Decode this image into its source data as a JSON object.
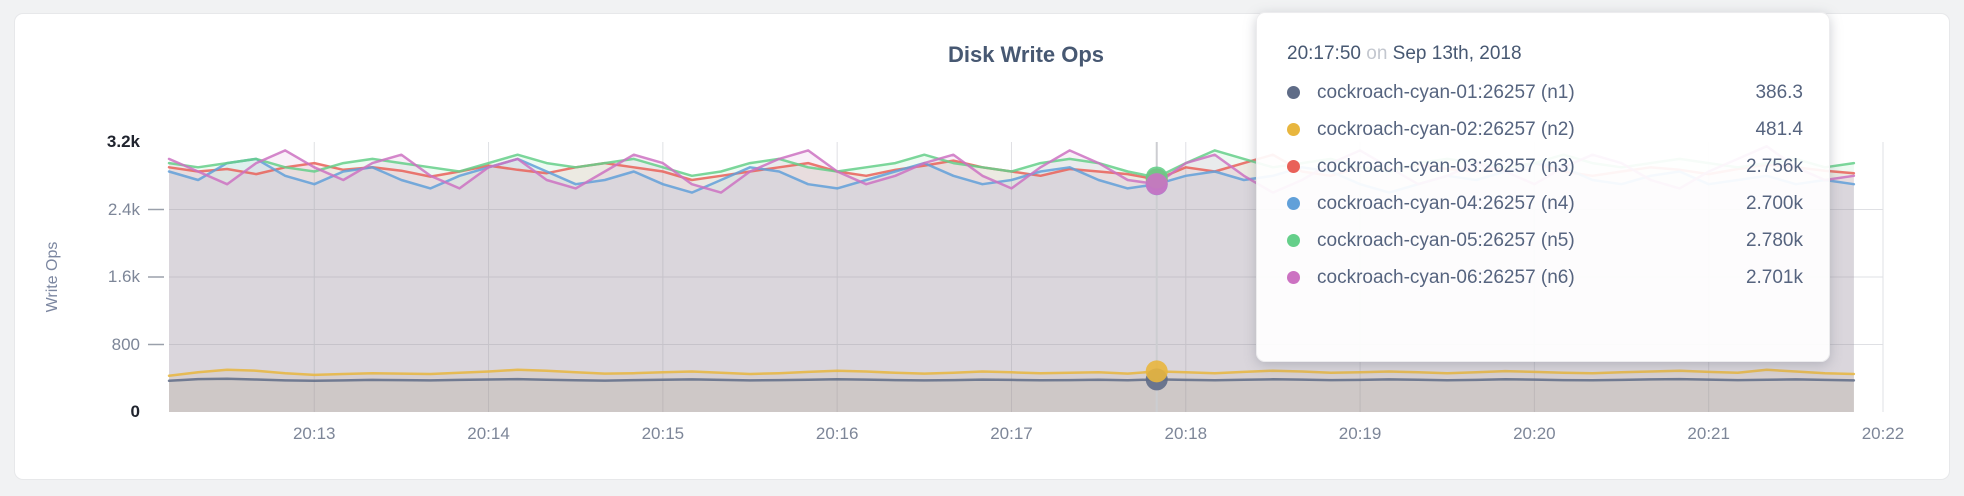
{
  "chart_data": {
    "type": "line",
    "title": "Disk Write Ops",
    "xlabel": "",
    "ylabel": "Write Ops",
    "ylim": [
      0,
      3200
    ],
    "grid": true,
    "legend_position": "tooltip",
    "x_start": "20:12:10",
    "x_domain_end": "20:22:00",
    "interval_seconds": 10,
    "x_ticks": [
      "20:13",
      "20:14",
      "20:15",
      "20:16",
      "20:17",
      "20:18",
      "20:19",
      "20:20",
      "20:21",
      "20:22"
    ],
    "y_ticks": [
      {
        "label": "0",
        "value": 0,
        "emphasis": true
      },
      {
        "label": "800",
        "value": 800,
        "emphasis": false
      },
      {
        "label": "1.6k",
        "value": 1600,
        "emphasis": false
      },
      {
        "label": "2.4k",
        "value": 2400,
        "emphasis": false
      },
      {
        "label": "3.2k",
        "value": 3200,
        "emphasis": true
      }
    ],
    "highlight": {
      "time": "20:17:50",
      "index": 34
    },
    "series": [
      {
        "name": "cockroach-cyan-01:26257 (n1)",
        "color": "#5f6c87",
        "values": [
          370,
          390,
          395,
          385,
          375,
          370,
          375,
          380,
          378,
          375,
          380,
          385,
          390,
          382,
          376,
          372,
          378,
          382,
          386,
          380,
          375,
          378,
          382,
          388,
          384,
          378,
          374,
          378,
          384,
          380,
          376,
          378,
          382,
          376,
          386.3,
          380,
          376,
          382,
          388,
          384,
          378,
          380,
          386,
          382,
          376,
          380,
          388,
          384,
          378,
          376,
          380,
          386,
          390,
          384,
          378,
          382,
          386,
          380,
          374
        ]
      },
      {
        "name": "cockroach-cyan-02:26257 (n2)",
        "color": "#e8b63e",
        "values": [
          430,
          470,
          500,
          490,
          460,
          440,
          450,
          460,
          455,
          450,
          465,
          480,
          500,
          490,
          470,
          455,
          460,
          470,
          480,
          465,
          450,
          460,
          475,
          490,
          480,
          465,
          455,
          465,
          480,
          470,
          460,
          465,
          470,
          455,
          481.4,
          470,
          460,
          475,
          490,
          480,
          465,
          470,
          480,
          470,
          460,
          470,
          485,
          475,
          465,
          460,
          470,
          480,
          490,
          475,
          465,
          500,
          480,
          460,
          450
        ]
      },
      {
        "name": "cockroach-cyan-03:26257 (n3)",
        "color": "#e96159",
        "values": [
          2900,
          2850,
          2880,
          2820,
          2900,
          2950,
          2870,
          2900,
          2860,
          2790,
          2850,
          2920,
          2870,
          2830,
          2900,
          2950,
          2900,
          2850,
          2750,
          2800,
          2850,
          2900,
          2950,
          2850,
          2800,
          2870,
          2920,
          2980,
          2900,
          2850,
          2800,
          2880,
          2850,
          2820,
          2756,
          2900,
          2850,
          2950,
          3050,
          2850,
          2800,
          2900,
          2870,
          2930,
          2880,
          2850,
          2900,
          2950,
          2850,
          2800,
          2850,
          2900,
          2870,
          2820,
          2880,
          2930,
          2900,
          2860,
          2830
        ]
      },
      {
        "name": "cockroach-cyan-04:26257 (n4)",
        "color": "#61a0d9",
        "values": [
          2850,
          2750,
          2950,
          3000,
          2800,
          2700,
          2850,
          2900,
          2750,
          2650,
          2800,
          2900,
          3000,
          2850,
          2700,
          2750,
          2850,
          2700,
          2600,
          2750,
          2900,
          2850,
          2700,
          2650,
          2750,
          2850,
          2950,
          2800,
          2700,
          2750,
          2850,
          2900,
          2750,
          2650,
          2700,
          2800,
          2850,
          2750,
          2800,
          2900,
          2850,
          2700,
          2600,
          2700,
          2800,
          2750,
          2850,
          2950,
          2900,
          2750,
          2700,
          2800,
          2850,
          2700,
          2750,
          2800,
          2700,
          2750,
          2700
        ]
      },
      {
        "name": "cockroach-cyan-05:26257 (n5)",
        "color": "#65cf8a",
        "values": [
          2950,
          2900,
          2950,
          3000,
          2900,
          2850,
          2950,
          3000,
          2950,
          2900,
          2850,
          2950,
          3050,
          2950,
          2900,
          2950,
          3000,
          2900,
          2800,
          2850,
          2950,
          3000,
          2900,
          2850,
          2900,
          2950,
          3050,
          2950,
          2900,
          2850,
          2950,
          3000,
          2950,
          2850,
          2780,
          2950,
          3100,
          3000,
          2900,
          2950,
          3000,
          2900,
          2850,
          2950,
          3000,
          2950,
          2900,
          2950,
          3050,
          2950,
          2900,
          2950,
          3000,
          2950,
          2900,
          2950,
          3000,
          2900,
          2950
        ]
      },
      {
        "name": "cockroach-cyan-06:26257 (n6)",
        "color": "#cc72c2",
        "values": [
          3000,
          2850,
          2700,
          2950,
          3100,
          2900,
          2750,
          2950,
          3050,
          2800,
          2650,
          2900,
          3000,
          2750,
          2650,
          2850,
          3050,
          2950,
          2700,
          2600,
          2850,
          3000,
          3100,
          2850,
          2700,
          2800,
          2950,
          3050,
          2800,
          2650,
          2900,
          3100,
          2950,
          2750,
          2701,
          2950,
          3050,
          2800,
          2600,
          2750,
          2950,
          3100,
          2900,
          2700,
          2800,
          2950,
          2850,
          2700,
          2900,
          3050,
          2950,
          2750,
          2650,
          2850,
          3000,
          3150,
          2900,
          2750,
          2800
        ]
      }
    ]
  },
  "tooltip": {
    "time": "20:17:50",
    "connector": "on",
    "date": "Sep 13th, 2018",
    "rows": [
      {
        "label": "cockroach-cyan-01:26257 (n1)",
        "value": "386.3",
        "color": "#5f6c87"
      },
      {
        "label": "cockroach-cyan-02:26257 (n2)",
        "value": "481.4",
        "color": "#e8b63e"
      },
      {
        "label": "cockroach-cyan-03:26257 (n3)",
        "value": "2.756k",
        "color": "#e96159"
      },
      {
        "label": "cockroach-cyan-04:26257 (n4)",
        "value": "2.700k",
        "color": "#61a0d9"
      },
      {
        "label": "cockroach-cyan-05:26257 (n5)",
        "value": "2.780k",
        "color": "#65cf8a"
      },
      {
        "label": "cockroach-cyan-06:26257 (n6)",
        "value": "2.701k",
        "color": "#cc72c2"
      }
    ]
  }
}
